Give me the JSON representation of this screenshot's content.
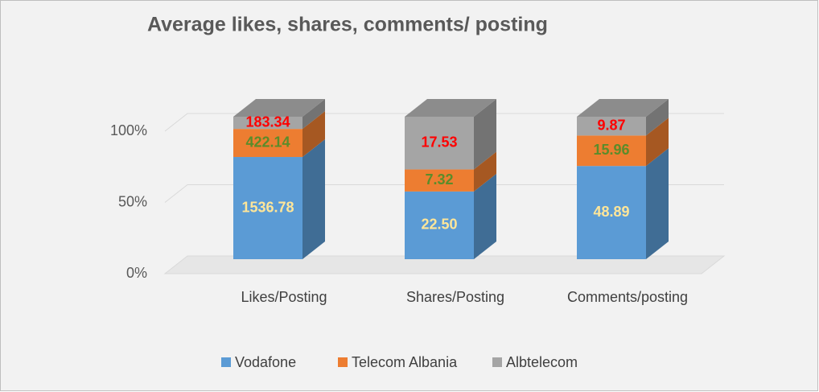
{
  "chart_data": {
    "type": "bar",
    "stacked": "percent",
    "three_d": true,
    "title": "Average likes, shares, comments/ posting",
    "categories": [
      "Likes/Posting",
      "Shares/Posting",
      "Comments/posting"
    ],
    "series": [
      {
        "name": "Vodafone",
        "color": "#5b9bd5",
        "label_color": "#ffe699",
        "values": [
          1536.78,
          22.5,
          48.89
        ],
        "value_labels": [
          "1536.78",
          "22.50",
          "48.89"
        ]
      },
      {
        "name": "Telecom Albania",
        "color": "#ed7d31",
        "label_color": "#5b8c2a",
        "values": [
          422.14,
          7.32,
          15.96
        ],
        "value_labels": [
          "422.14",
          "7.32",
          "15.96"
        ]
      },
      {
        "name": "Albtelecom",
        "color": "#a5a5a5",
        "label_color": "#ff0000",
        "values": [
          183.34,
          17.53,
          9.87
        ],
        "value_labels": [
          "183.34",
          "17.53",
          "9.87"
        ]
      }
    ],
    "ylim": [
      0,
      100
    ],
    "yticks": [
      {
        "value": 0,
        "label": "0%"
      },
      {
        "value": 50,
        "label": "50%"
      },
      {
        "value": 100,
        "label": "100%"
      }
    ],
    "grid": true,
    "legend": "bottom"
  }
}
